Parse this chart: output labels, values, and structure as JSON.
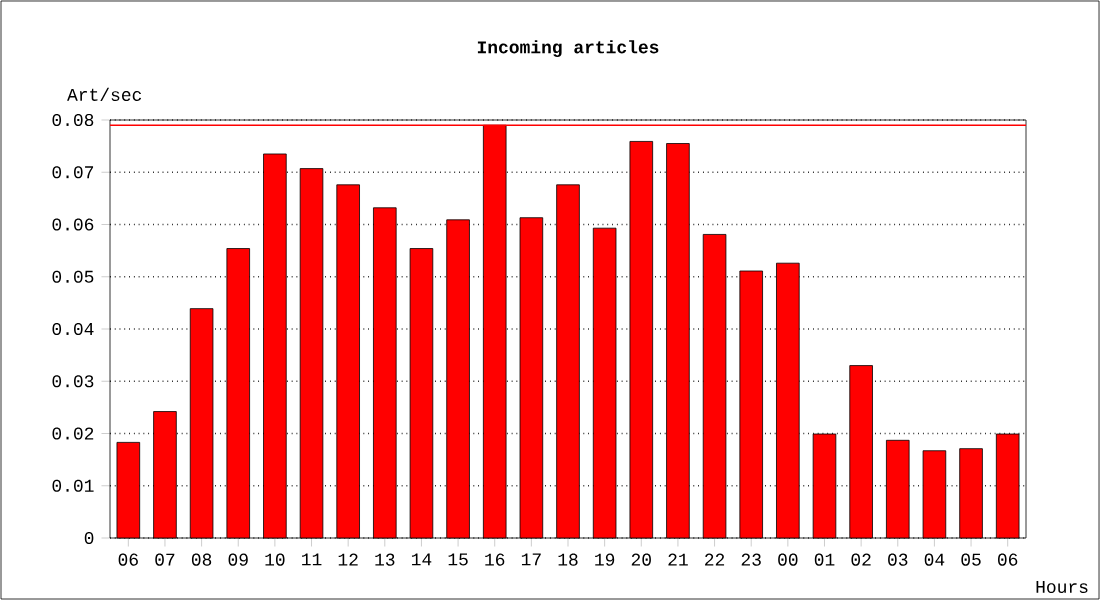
{
  "chart_data": {
    "type": "bar",
    "title": "Incoming articles",
    "ylabel": "Art/sec",
    "xlabel": "Hours",
    "categories": [
      "06",
      "07",
      "08",
      "09",
      "10",
      "11",
      "12",
      "13",
      "14",
      "15",
      "16",
      "17",
      "18",
      "19",
      "20",
      "21",
      "22",
      "23",
      "00",
      "01",
      "02",
      "03",
      "04",
      "05",
      "06"
    ],
    "values": [
      0.0183,
      0.0242,
      0.0439,
      0.0554,
      0.0735,
      0.0707,
      0.0676,
      0.0632,
      0.0554,
      0.0609,
      0.079,
      0.0613,
      0.0676,
      0.0593,
      0.0759,
      0.0755,
      0.0581,
      0.0511,
      0.0526,
      0.0199,
      0.033,
      0.0187,
      0.0167,
      0.0171,
      0.0199
    ],
    "color": "#ff0000",
    "ylim": [
      0,
      0.08
    ],
    "yticks": [
      0,
      0.01,
      0.02,
      0.03,
      0.04,
      0.05,
      0.06,
      0.07,
      0.08
    ],
    "grid": "y",
    "ref_lines": [
      {
        "axis": "y",
        "value": 0.079,
        "color": "#ff0000"
      }
    ]
  }
}
